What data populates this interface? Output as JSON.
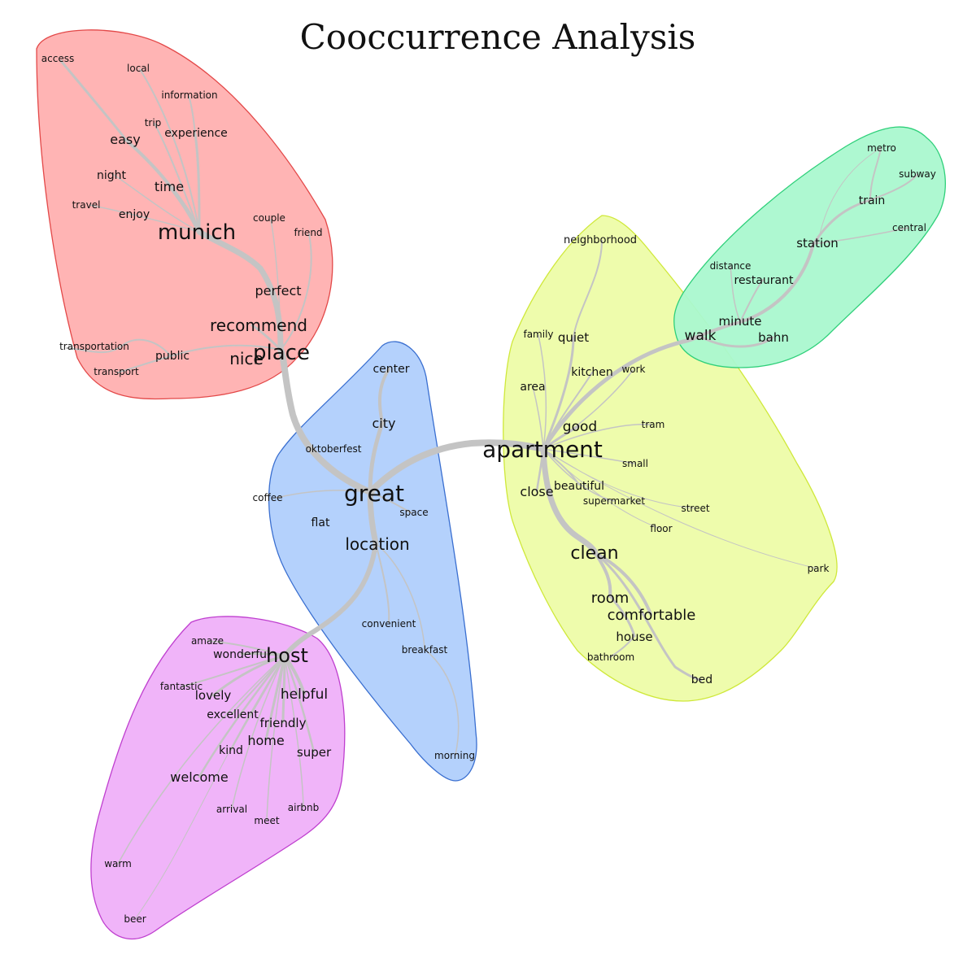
{
  "title": "Cooccurrence Analysis",
  "clusters": [
    {
      "id": "red",
      "fill": "#ffb0b0",
      "stroke": "#e34848"
    },
    {
      "id": "blue",
      "fill": "#b0cffc",
      "stroke": "#3a6fd0"
    },
    {
      "id": "yellow",
      "fill": "#edfca8",
      "stroke": "#cfe83a"
    },
    {
      "id": "green",
      "fill": "#aaf8cf",
      "stroke": "#2fd07a"
    },
    {
      "id": "magenta",
      "fill": "#efb0f9",
      "stroke": "#bf3fcf"
    }
  ],
  "words": [
    {
      "text": "access",
      "cluster": "red",
      "level": 1
    },
    {
      "text": "local",
      "cluster": "red",
      "level": 1
    },
    {
      "text": "information",
      "cluster": "red",
      "level": 1
    },
    {
      "text": "trip",
      "cluster": "red",
      "level": 1
    },
    {
      "text": "experience",
      "cluster": "red",
      "level": 2
    },
    {
      "text": "easy",
      "cluster": "red",
      "level": 3
    },
    {
      "text": "night",
      "cluster": "red",
      "level": 2
    },
    {
      "text": "time",
      "cluster": "red",
      "level": 3
    },
    {
      "text": "travel",
      "cluster": "red",
      "level": 1
    },
    {
      "text": "enjoy",
      "cluster": "red",
      "level": 2
    },
    {
      "text": "munich",
      "cluster": "red",
      "level": 5
    },
    {
      "text": "couple",
      "cluster": "red",
      "level": 1
    },
    {
      "text": "friend",
      "cluster": "red",
      "level": 1
    },
    {
      "text": "perfect",
      "cluster": "red",
      "level": 3
    },
    {
      "text": "recommend",
      "cluster": "red",
      "level": 4
    },
    {
      "text": "transportation",
      "cluster": "red",
      "level": 1
    },
    {
      "text": "public",
      "cluster": "red",
      "level": 2
    },
    {
      "text": "nice",
      "cluster": "red",
      "level": 4
    },
    {
      "text": "place",
      "cluster": "red",
      "level": 5
    },
    {
      "text": "transport",
      "cluster": "red",
      "level": 1
    },
    {
      "text": "center",
      "cluster": "blue",
      "level": 2
    },
    {
      "text": "city",
      "cluster": "blue",
      "level": 3
    },
    {
      "text": "oktoberfest",
      "cluster": "blue",
      "level": 1
    },
    {
      "text": "coffee",
      "cluster": "blue",
      "level": 1
    },
    {
      "text": "great",
      "cluster": "blue",
      "level": 6
    },
    {
      "text": "space",
      "cluster": "blue",
      "level": 1
    },
    {
      "text": "flat",
      "cluster": "blue",
      "level": 2
    },
    {
      "text": "location",
      "cluster": "blue",
      "level": 4
    },
    {
      "text": "convenient",
      "cluster": "blue",
      "level": 1
    },
    {
      "text": "breakfast",
      "cluster": "blue",
      "level": 1
    },
    {
      "text": "morning",
      "cluster": "blue",
      "level": 1
    },
    {
      "text": "neighborhood",
      "cluster": "yellow",
      "level": 1
    },
    {
      "text": "family",
      "cluster": "yellow",
      "level": 1
    },
    {
      "text": "quiet",
      "cluster": "yellow",
      "level": 3
    },
    {
      "text": "kitchen",
      "cluster": "yellow",
      "level": 2
    },
    {
      "text": "work",
      "cluster": "yellow",
      "level": 1
    },
    {
      "text": "area",
      "cluster": "yellow",
      "level": 2
    },
    {
      "text": "good",
      "cluster": "yellow",
      "level": 4
    },
    {
      "text": "tram",
      "cluster": "yellow",
      "level": 1
    },
    {
      "text": "apartment",
      "cluster": "yellow",
      "level": 6
    },
    {
      "text": "small",
      "cluster": "yellow",
      "level": 1
    },
    {
      "text": "close",
      "cluster": "yellow",
      "level": 3
    },
    {
      "text": "beautiful",
      "cluster": "yellow",
      "level": 2
    },
    {
      "text": "supermarket",
      "cluster": "yellow",
      "level": 1
    },
    {
      "text": "street",
      "cluster": "yellow",
      "level": 1
    },
    {
      "text": "floor",
      "cluster": "yellow",
      "level": 1
    },
    {
      "text": "park",
      "cluster": "yellow",
      "level": 1
    },
    {
      "text": "clean",
      "cluster": "yellow",
      "level": 5
    },
    {
      "text": "room",
      "cluster": "yellow",
      "level": 4
    },
    {
      "text": "comfortable",
      "cluster": "yellow",
      "level": 4
    },
    {
      "text": "house",
      "cluster": "yellow",
      "level": 3
    },
    {
      "text": "bathroom",
      "cluster": "yellow",
      "level": 1
    },
    {
      "text": "bed",
      "cluster": "yellow",
      "level": 2
    },
    {
      "text": "metro",
      "cluster": "green",
      "level": 1
    },
    {
      "text": "subway",
      "cluster": "green",
      "level": 1
    },
    {
      "text": "train",
      "cluster": "green",
      "level": 2
    },
    {
      "text": "central",
      "cluster": "green",
      "level": 1
    },
    {
      "text": "station",
      "cluster": "green",
      "level": 3
    },
    {
      "text": "distance",
      "cluster": "green",
      "level": 1
    },
    {
      "text": "restaurant",
      "cluster": "green",
      "level": 2
    },
    {
      "text": "minute",
      "cluster": "green",
      "level": 3
    },
    {
      "text": "walk",
      "cluster": "green",
      "level": 4
    },
    {
      "text": "bahn",
      "cluster": "green",
      "level": 3
    },
    {
      "text": "amaze",
      "cluster": "magenta",
      "level": 1
    },
    {
      "text": "wonderful",
      "cluster": "magenta",
      "level": 2
    },
    {
      "text": "host",
      "cluster": "magenta",
      "level": 5
    },
    {
      "text": "fantastic",
      "cluster": "magenta",
      "level": 1
    },
    {
      "text": "lovely",
      "cluster": "magenta",
      "level": 3
    },
    {
      "text": "helpful",
      "cluster": "magenta",
      "level": 4
    },
    {
      "text": "excellent",
      "cluster": "magenta",
      "level": 2
    },
    {
      "text": "friendly",
      "cluster": "magenta",
      "level": 3
    },
    {
      "text": "home",
      "cluster": "magenta",
      "level": 3
    },
    {
      "text": "kind",
      "cluster": "magenta",
      "level": 2
    },
    {
      "text": "super",
      "cluster": "magenta",
      "level": 3
    },
    {
      "text": "welcome",
      "cluster": "magenta",
      "level": 3
    },
    {
      "text": "arrival",
      "cluster": "magenta",
      "level": 1
    },
    {
      "text": "airbnb",
      "cluster": "magenta",
      "level": 1
    },
    {
      "text": "meet",
      "cluster": "magenta",
      "level": 1
    },
    {
      "text": "warm",
      "cluster": "magenta",
      "level": 1
    },
    {
      "text": "beer",
      "cluster": "magenta",
      "level": 1
    }
  ],
  "edge_color": "#c4c4c4"
}
